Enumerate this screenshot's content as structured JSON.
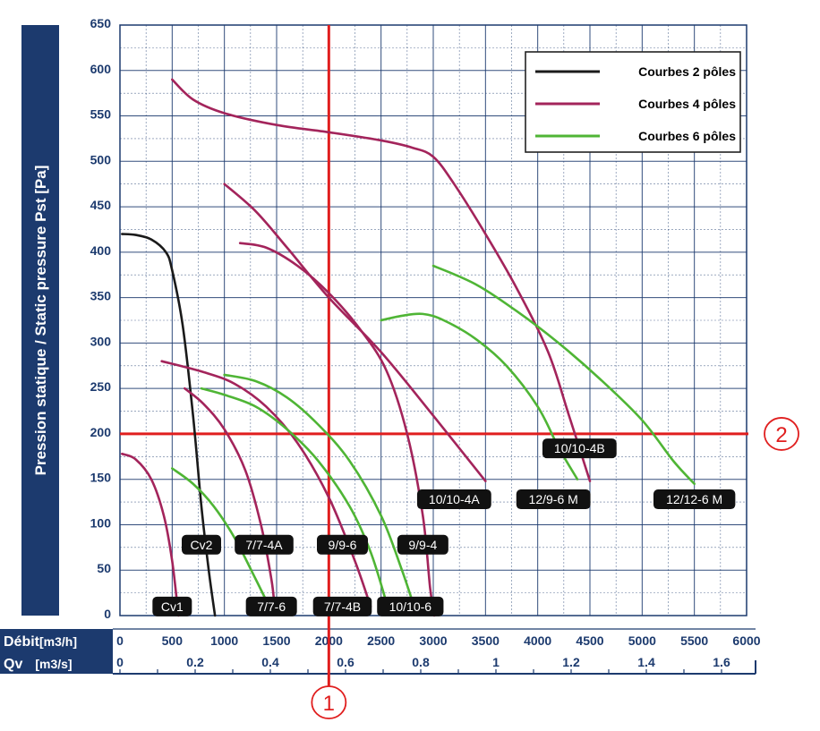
{
  "chart_data": {
    "type": "line",
    "ylabel": "Pression statique / Static pressure Pst [Pa]",
    "ylim": [
      0,
      650
    ],
    "yticks": [
      "650",
      "600",
      "550",
      "500",
      "450",
      "400",
      "350",
      "300",
      "250",
      "200",
      "150",
      "100",
      "50",
      "0"
    ],
    "xlim": [
      0,
      6000
    ],
    "x_axis_labels": {
      "debit_label": "Débit",
      "debit_unit": "[m3/h]",
      "qv_label": "Qv",
      "qv_unit": "[m3/s]"
    },
    "xticks_m3h": [
      "0",
      "500",
      "1000",
      "1500",
      "2000",
      "2500",
      "3000",
      "3500",
      "4000",
      "4500",
      "5000",
      "5500",
      "6000"
    ],
    "xticks_m3s": [
      "0",
      "0.2",
      "0.4",
      "0.6",
      "0.8",
      "1",
      "1.2",
      "1.4",
      "1.6"
    ],
    "legend": [
      {
        "label": "Courbes 2 pôles",
        "color": "#1a1a1a"
      },
      {
        "label": "Courbes 4 pôles",
        "color": "#a3245b"
      },
      {
        "label": "Courbes 6 pôles",
        "color": "#4fb535"
      }
    ],
    "legend_position": "top-right",
    "grid": true,
    "series": [
      {
        "label": "Cv2",
        "group": "2 pôles",
        "color": "#1a1a1a",
        "points": [
          [
            20,
            420
          ],
          [
            150,
            419
          ],
          [
            300,
            414
          ],
          [
            440,
            400
          ],
          [
            500,
            380
          ],
          [
            600,
            320
          ],
          [
            700,
            220
          ],
          [
            780,
            120
          ],
          [
            850,
            50
          ],
          [
            910,
            0
          ]
        ]
      },
      {
        "label": "Cv1",
        "group": "4 pôles",
        "color": "#a3245b",
        "points": [
          [
            20,
            178
          ],
          [
            150,
            172
          ],
          [
            300,
            150
          ],
          [
            420,
            110
          ],
          [
            500,
            60
          ],
          [
            560,
            0
          ]
        ]
      },
      {
        "label": "7/7-4A",
        "group": "4 pôles",
        "color": "#a3245b",
        "points": [
          [
            620,
            250
          ],
          [
            800,
            233
          ],
          [
            1000,
            205
          ],
          [
            1200,
            160
          ],
          [
            1350,
            100
          ],
          [
            1450,
            40
          ],
          [
            1480,
            10
          ]
        ]
      },
      {
        "label": "7/7-4B",
        "group": "4 pôles",
        "color": "#a3245b",
        "points": [
          [
            400,
            280
          ],
          [
            800,
            268
          ],
          [
            1100,
            255
          ],
          [
            1400,
            230
          ],
          [
            1700,
            190
          ],
          [
            2000,
            130
          ],
          [
            2250,
            60
          ],
          [
            2400,
            10
          ]
        ]
      },
      {
        "label": "9/9-4",
        "group": "4 pôles",
        "color": "#a3245b",
        "points": [
          [
            1150,
            410
          ],
          [
            1400,
            405
          ],
          [
            1700,
            385
          ],
          [
            2000,
            355
          ],
          [
            2300,
            315
          ],
          [
            2550,
            270
          ],
          [
            2750,
            200
          ],
          [
            2900,
            110
          ],
          [
            2970,
            30
          ],
          [
            3010,
            0
          ]
        ]
      },
      {
        "label": "10/10-4A",
        "group": "4 pôles",
        "color": "#a3245b",
        "points": [
          [
            1000,
            475
          ],
          [
            1300,
            445
          ],
          [
            1600,
            405
          ],
          [
            2000,
            350
          ],
          [
            2500,
            290
          ],
          [
            3000,
            220
          ],
          [
            3500,
            148
          ]
        ]
      },
      {
        "label": "10/10-4B",
        "group": "4 pôles",
        "color": "#a3245b",
        "points": [
          [
            500,
            590
          ],
          [
            700,
            568
          ],
          [
            1000,
            553
          ],
          [
            1500,
            540
          ],
          [
            2000,
            532
          ],
          [
            2500,
            523
          ],
          [
            2800,
            515
          ],
          [
            3000,
            505
          ],
          [
            3200,
            475
          ],
          [
            3500,
            420
          ],
          [
            3800,
            360
          ],
          [
            4100,
            290
          ],
          [
            4300,
            220
          ],
          [
            4500,
            148
          ]
        ]
      },
      {
        "label": "7/7-6",
        "group": "6 pôles",
        "color": "#4fb535",
        "points": [
          [
            500,
            162
          ],
          [
            700,
            145
          ],
          [
            900,
            120
          ],
          [
            1100,
            85
          ],
          [
            1300,
            40
          ],
          [
            1450,
            5
          ]
        ]
      },
      {
        "label": "9/9-6",
        "group": "6 pôles",
        "color": "#4fb535",
        "points": [
          [
            780,
            250
          ],
          [
            1000,
            243
          ],
          [
            1300,
            230
          ],
          [
            1600,
            205
          ],
          [
            1900,
            170
          ],
          [
            2200,
            120
          ],
          [
            2400,
            70
          ],
          [
            2550,
            15
          ]
        ]
      },
      {
        "label": "10/10-6",
        "group": "6 pôles",
        "color": "#4fb535",
        "points": [
          [
            1000,
            265
          ],
          [
            1300,
            258
          ],
          [
            1600,
            240
          ],
          [
            1900,
            210
          ],
          [
            2200,
            170
          ],
          [
            2500,
            110
          ],
          [
            2700,
            50
          ],
          [
            2830,
            5
          ]
        ]
      },
      {
        "label": "12/9-6 M",
        "group": "6 pôles",
        "color": "#4fb535",
        "points": [
          [
            2500,
            325
          ],
          [
            2700,
            330
          ],
          [
            2900,
            332
          ],
          [
            3100,
            325
          ],
          [
            3400,
            305
          ],
          [
            3700,
            275
          ],
          [
            4000,
            230
          ],
          [
            4200,
            185
          ],
          [
            4380,
            150
          ]
        ]
      },
      {
        "label": "12/12-6 M",
        "group": "6 pôles",
        "color": "#4fb535",
        "points": [
          [
            3000,
            385
          ],
          [
            3400,
            365
          ],
          [
            3800,
            335
          ],
          [
            4200,
            300
          ],
          [
            4600,
            260
          ],
          [
            5000,
            215
          ],
          [
            5300,
            170
          ],
          [
            5500,
            145
          ]
        ]
      }
    ],
    "curve_tags": [
      {
        "text": "Cv1",
        "x": 500,
        "y": 10
      },
      {
        "text": "Cv2",
        "x": 780,
        "y": 78
      },
      {
        "text": "7/7-4A",
        "x": 1380,
        "y": 78
      },
      {
        "text": "7/7-6",
        "x": 1450,
        "y": 10
      },
      {
        "text": "7/7-4B",
        "x": 2130,
        "y": 10
      },
      {
        "text": "9/9-6",
        "x": 2130,
        "y": 78
      },
      {
        "text": "9/9-4",
        "x": 2900,
        "y": 78
      },
      {
        "text": "10/10-6",
        "x": 2780,
        "y": 10
      },
      {
        "text": "10/10-4A",
        "x": 3200,
        "y": 128
      },
      {
        "text": "12/9-6 M",
        "x": 4150,
        "y": 128
      },
      {
        "text": "10/10-4B",
        "x": 4400,
        "y": 184
      },
      {
        "text": "12/12-6 M",
        "x": 5500,
        "y": 128
      }
    ],
    "reference_lines": [
      {
        "orientation": "vertical",
        "value": 2000,
        "label": "1",
        "color": "#e01e1e"
      },
      {
        "orientation": "horizontal",
        "value": 200,
        "label": "2",
        "color": "#e01e1e"
      }
    ]
  }
}
